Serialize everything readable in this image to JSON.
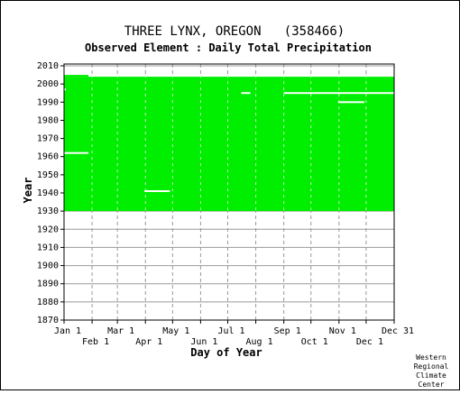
{
  "chart_data": {
    "type": "heatmap",
    "title": "THREE LYNX, OREGON   (358466)",
    "subtitle": "Observed Element : Daily Total Precipitation",
    "xlabel": "Day of Year",
    "ylabel": "Year",
    "x_ticks_row1": [
      "Jan 1",
      "Mar 1",
      "May 1",
      "Jul 1",
      "Sep 1",
      "Nov 1",
      "Dec 31"
    ],
    "x_ticks_row2": [
      "Feb 1",
      "Apr 1",
      "Jun 1",
      "Aug 1",
      "Oct 1",
      "Dec 1"
    ],
    "month_start_days": [
      1,
      32,
      60,
      91,
      121,
      152,
      182,
      213,
      244,
      274,
      305,
      335
    ],
    "xlim": [
      1,
      366
    ],
    "y_ticks": [
      1870,
      1880,
      1890,
      1900,
      1910,
      1920,
      1930,
      1940,
      1950,
      1960,
      1970,
      1980,
      1990,
      2000,
      2010
    ],
    "ylim": [
      1870,
      2011
    ],
    "record_color": "#00ee00",
    "record_periods": [
      {
        "year_start": 1930,
        "year_end": 2004,
        "day_start": 1,
        "day_end": 366
      },
      {
        "year_start": 2004,
        "year_end": 2005,
        "day_start": 1,
        "day_end": 28
      }
    ],
    "missing_segments": [
      {
        "year": 1962,
        "day_start": 1,
        "day_end": 28
      },
      {
        "year": 1941,
        "day_start": 90,
        "day_end": 118
      },
      {
        "year": 1995,
        "day_start": 197,
        "day_end": 207
      },
      {
        "year": 1995,
        "day_start": 244,
        "day_end": 366
      },
      {
        "year": 1990,
        "day_start": 304,
        "day_end": 333
      },
      {
        "year": 1997,
        "day_start": 1,
        "day_end": 3
      }
    ],
    "grid": true
  },
  "credit": [
    "Western",
    "Regional",
    "Climate",
    "Center"
  ]
}
